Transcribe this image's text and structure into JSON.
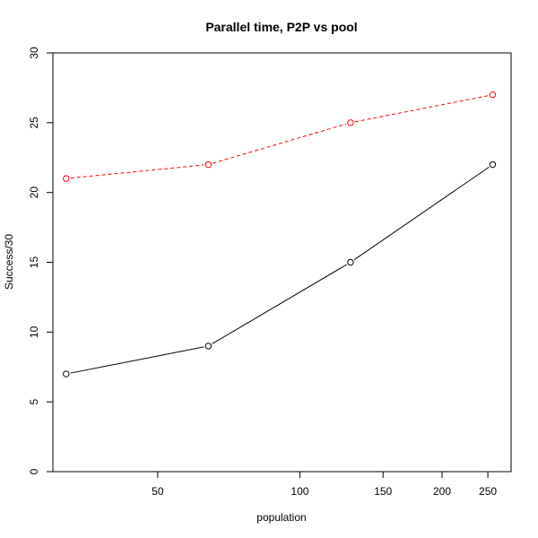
{
  "chart_data": {
    "type": "line",
    "title": "Parallel time, P2P vs pool",
    "xlabel": "population",
    "ylabel": "Success/30",
    "x_scale": "log",
    "xlim": [
      30,
      280
    ],
    "ylim": [
      0,
      30
    ],
    "x_ticks": [
      50,
      100,
      150,
      200,
      250
    ],
    "y_ticks": [
      0,
      5,
      10,
      15,
      20,
      25,
      30
    ],
    "x": [
      32,
      64,
      128,
      256
    ],
    "series": [
      {
        "values": [
          7,
          9,
          15,
          22
        ],
        "color": "#000000",
        "dash": "solid",
        "marker": "open-circle"
      },
      {
        "values": [
          21,
          22,
          25,
          27
        ],
        "color": "#ff0000",
        "dash": "dashed",
        "marker": "open-circle"
      }
    ],
    "grid": false,
    "legend": "none"
  }
}
